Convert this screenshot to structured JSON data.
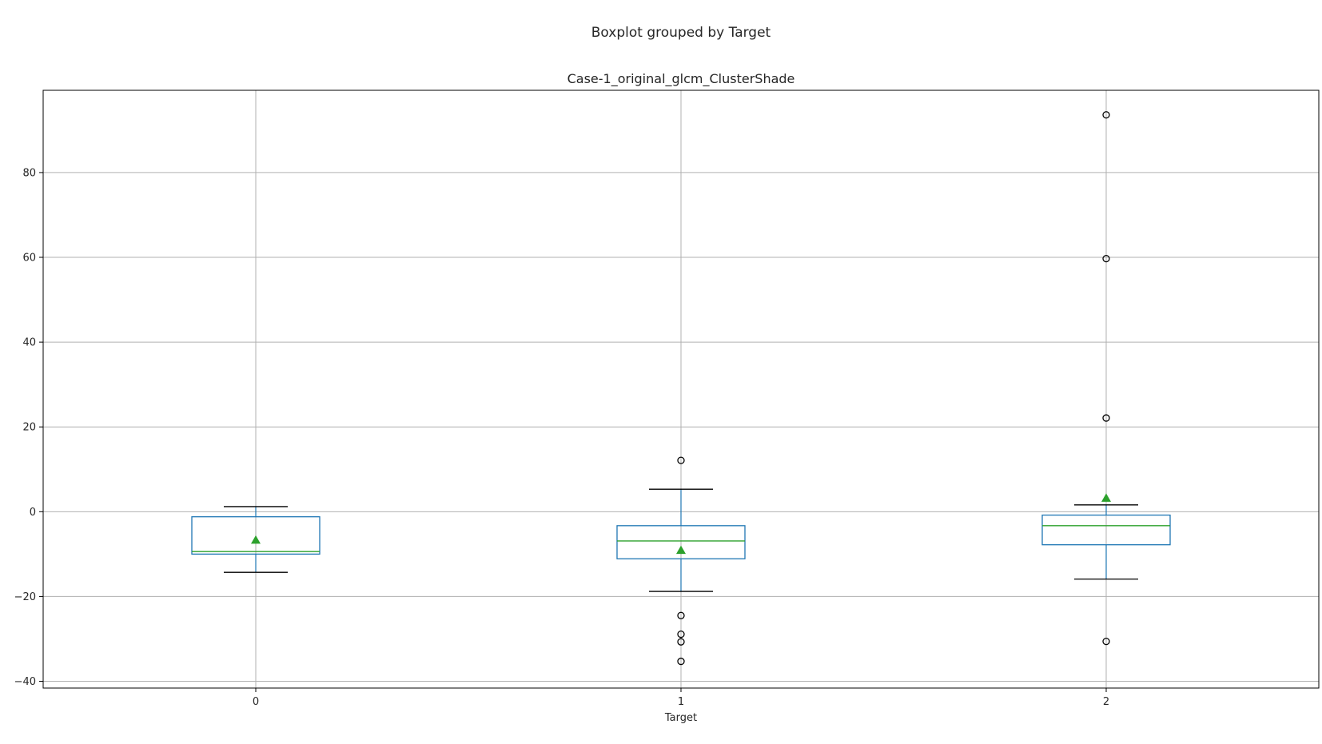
{
  "suptitle": "Boxplot grouped by Target",
  "chart_data": {
    "type": "box",
    "title": "Case-1_original_glcm_ClusterShade",
    "xlabel": "Target",
    "ylabel": "",
    "categories": [
      "0",
      "1",
      "2"
    ],
    "ylim": [
      -41.6,
      99.4
    ],
    "yticks": [
      -40,
      -20,
      0,
      20,
      40,
      60,
      80
    ],
    "grid": true,
    "show_means": true,
    "colors": {
      "box": "#1f77b4",
      "median": "#2ca02c",
      "mean": "#2ca02c",
      "whisker": "#1f77b4",
      "cap": "#000000",
      "flier": "#000000",
      "grid": "#b0b0b0"
    },
    "boxes": [
      {
        "category": "0",
        "whisker_low": -14.3,
        "q1": -10.0,
        "median": -9.4,
        "q3": -1.2,
        "whisker_high": 1.2,
        "mean": -6.7,
        "fliers": []
      },
      {
        "category": "1",
        "whisker_low": -18.8,
        "q1": -11.1,
        "median": -6.9,
        "q3": -3.3,
        "whisker_high": 5.3,
        "mean": -9.1,
        "fliers": [
          12.1,
          -24.5,
          -28.9,
          -30.7,
          -35.3
        ]
      },
      {
        "category": "2",
        "whisker_low": -15.9,
        "q1": -7.8,
        "median": -3.3,
        "q3": -0.8,
        "whisker_high": 1.6,
        "mean": 3.2,
        "fliers": [
          93.6,
          59.7,
          22.1,
          -30.6
        ]
      }
    ]
  }
}
